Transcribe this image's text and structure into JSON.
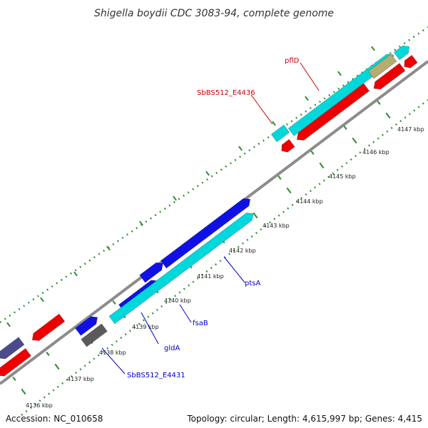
{
  "title": "Shigella boydii CDC 3083-94, complete genome",
  "footer": {
    "accession": "Accession: NC_010658",
    "stats": "Topology: circular; Length: 4,615,997 bp; Genes: 4,415"
  },
  "colors": {
    "backbone": "#8c8c8c",
    "tick": "#2e8b2e",
    "forward_gene": "#1010e6",
    "forward_cds": "#00d8dc",
    "reverse_gene": "#ee0000",
    "other_gene": "#5a5a5a",
    "other_cds": "#b5ad6f",
    "dark_gene": "#4a4a8c",
    "label_blue": "#0000cc",
    "label_red": "#cc0000"
  },
  "tick_labels": [
    {
      "text": "4136 kbp"
    },
    {
      "text": "4137 kbp"
    },
    {
      "text": "4138 kbp"
    },
    {
      "text": "4139 kbp"
    },
    {
      "text": "4140 kbp"
    },
    {
      "text": "4141 kbp"
    },
    {
      "text": "4142 kbp"
    },
    {
      "text": "4143 kbp"
    },
    {
      "text": "4144 kbp"
    },
    {
      "text": "4145 kbp"
    },
    {
      "text": "4146 kbp"
    },
    {
      "text": "4147 kbp"
    }
  ],
  "gene_labels": [
    {
      "text": "pflD",
      "strand": "reverse"
    },
    {
      "text": "SbBS512_E4436",
      "strand": "reverse"
    },
    {
      "text": "ptsA",
      "strand": "forward"
    },
    {
      "text": "fsaB",
      "strand": "forward"
    },
    {
      "text": "gldA",
      "strand": "forward"
    },
    {
      "text": "SbBS512_E4431",
      "strand": "forward"
    }
  ]
}
